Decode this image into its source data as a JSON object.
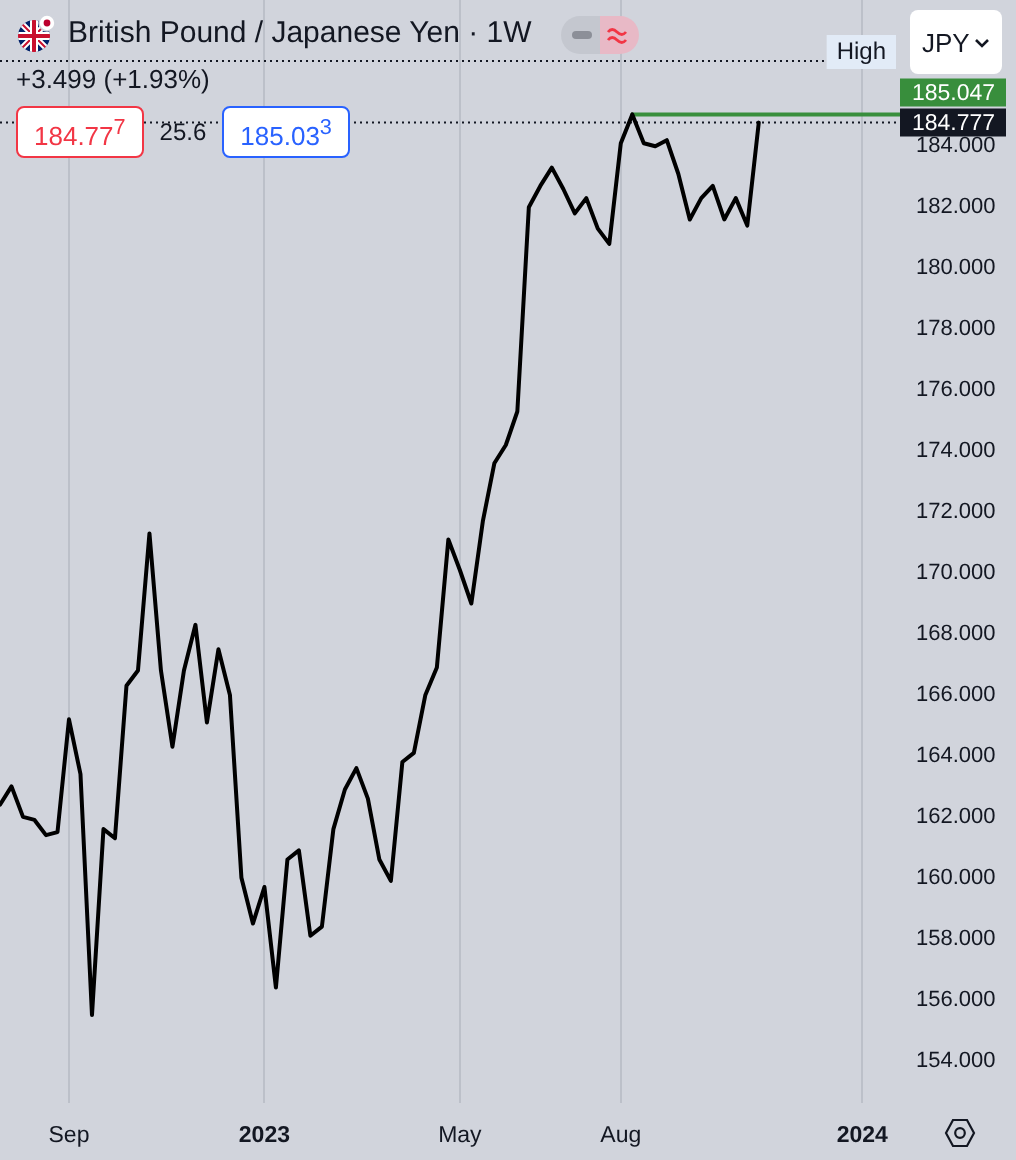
{
  "chart_data": {
    "type": "line",
    "title": "British Pound / Japanese Yen · 1W",
    "subtitle": "+3.499 (+1.93%)",
    "ylabel": "JPY",
    "annotations": [
      "184.77$^{7}$",
      "25.6",
      "185.03$^{3}$"
    ],
    "x": [
      "2022-07-25",
      "2022-08-01",
      "2022-08-08",
      "2022-08-15",
      "2022-08-22",
      "2022-08-29",
      "2022-09-05",
      "2022-09-12",
      "2022-09-19",
      "2022-09-26",
      "2022-10-03",
      "2022-10-10",
      "2022-10-17",
      "2022-10-24",
      "2022-10-31",
      "2022-11-07",
      "2022-11-14",
      "2022-11-21",
      "2022-11-28",
      "2022-12-05",
      "2022-12-12",
      "2022-12-19",
      "2022-12-26",
      "2023-01-02",
      "2023-01-09",
      "2023-01-16",
      "2023-01-23",
      "2023-01-30",
      "2023-02-06",
      "2023-02-13",
      "2023-02-20",
      "2023-02-27",
      "2023-03-06",
      "2023-03-13",
      "2023-03-20",
      "2023-03-27",
      "2023-04-03",
      "2023-04-10",
      "2023-04-17",
      "2023-04-24",
      "2023-05-01",
      "2023-05-08",
      "2023-05-15",
      "2023-05-22",
      "2023-05-29",
      "2023-06-05",
      "2023-06-12",
      "2023-06-19",
      "2023-06-26",
      "2023-07-03",
      "2023-07-10",
      "2023-07-17",
      "2023-07-24",
      "2023-07-31",
      "2023-08-07",
      "2023-08-14",
      "2023-08-21",
      "2023-08-28",
      "2023-09-04",
      "2023-09-11",
      "2023-09-18",
      "2023-09-25",
      "2023-10-02",
      "2023-10-09",
      "2023-10-16",
      "2023-10-23",
      "2023-10-30"
    ],
    "series": [
      {
        "color": "#000000",
        "values": [
          162.4,
          163.0,
          162.0,
          161.9,
          161.4,
          161.5,
          165.2,
          163.4,
          155.5,
          161.6,
          161.3,
          166.3,
          166.8,
          171.3,
          166.8,
          164.3,
          166.8,
          168.3,
          165.1,
          167.5,
          166.0,
          160.0,
          158.5,
          159.7,
          156.4,
          160.6,
          160.9,
          158.1,
          158.4,
          161.6,
          162.9,
          163.6,
          162.6,
          160.6,
          159.9,
          163.8,
          164.1,
          166.0,
          166.9,
          171.1,
          170.1,
          169.0,
          171.7,
          173.6,
          174.2,
          175.3,
          182.0,
          182.7,
          183.3,
          182.6,
          181.8,
          182.3,
          181.3,
          180.8,
          184.1,
          185.047,
          184.1,
          184.0,
          184.2,
          183.1,
          181.6,
          182.3,
          182.7,
          181.6,
          182.3,
          181.4,
          184.777
        ]
      },
      {
        "type": "line",
        "color": "#388e3c",
        "x": [
          "2023-08-14",
          "2024-01-24"
        ],
        "values": [
          185.047,
          185.047
        ],
        "value_labels": [
          null,
          "185.047"
        ]
      }
    ],
    "xlim": [
      "2022-07-25",
      "2024-01-24"
    ],
    "ylim": [
      152.6,
      188.8
    ],
    "xticks": [
      {
        "value": "2022-09-05",
        "label": "Sep"
      },
      {
        "value": "2023-01-02",
        "label": "2023"
      },
      {
        "value": "2023-05-01",
        "label": "May"
      },
      {
        "value": "2023-08-07",
        "label": "Aug"
      },
      {
        "value": "2024-01-01",
        "label": "2024"
      }
    ],
    "yticks": [
      {
        "value": 154,
        "label": "154.000"
      },
      {
        "value": 156,
        "label": "156.000"
      },
      {
        "value": 158,
        "label": "158.000"
      },
      {
        "value": 160,
        "label": "160.000"
      },
      {
        "value": 162,
        "label": "162.000"
      },
      {
        "value": 164,
        "label": "164.000"
      },
      {
        "value": 166,
        "label": "166.000"
      },
      {
        "value": 168,
        "label": "168.000"
      },
      {
        "value": 170,
        "label": "170.000"
      },
      {
        "value": 172,
        "label": "172.000"
      },
      {
        "value": 174,
        "label": "174.000"
      },
      {
        "value": 176,
        "label": "176.000"
      },
      {
        "value": 178,
        "label": "178.000"
      },
      {
        "value": 180,
        "label": "180.000"
      },
      {
        "value": 182,
        "label": "182.000"
      },
      {
        "value": 184,
        "label": "184.000"
      }
    ],
    "ref_lines": [
      {
        "axis": "y",
        "value": 186.8,
        "label": "High",
        "line_style": "dotted",
        "color": "#131722"
      },
      {
        "axis": "y",
        "value": 184.777,
        "label": "184.777",
        "line_style": "dotted",
        "color": "#131722"
      }
    ],
    "grid": "x",
    "legend": false,
    "marker": "none"
  }
}
